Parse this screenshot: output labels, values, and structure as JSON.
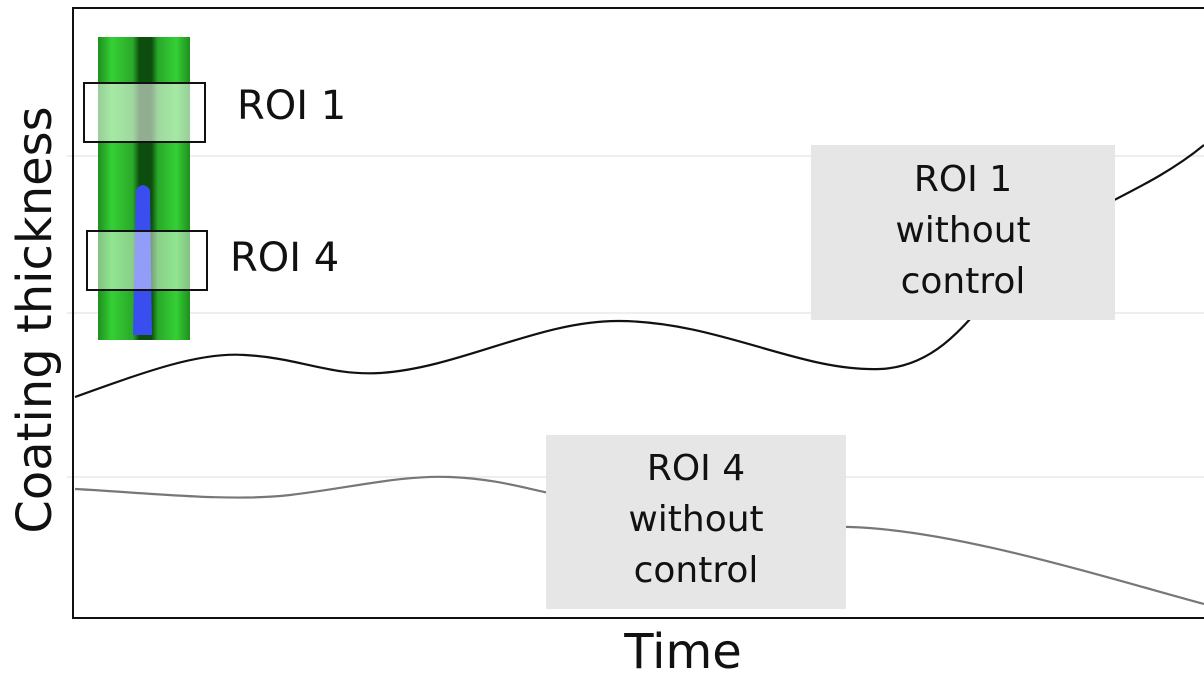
{
  "axes": {
    "x_label": "Time",
    "y_label": "Coating thickness"
  },
  "inset": {
    "labels": [
      "ROI 1",
      "ROI 4"
    ]
  },
  "annotations": [
    {
      "lines": [
        "ROI 1",
        "without",
        "control"
      ]
    },
    {
      "lines": [
        "ROI 4",
        "without",
        "control"
      ]
    }
  ]
}
